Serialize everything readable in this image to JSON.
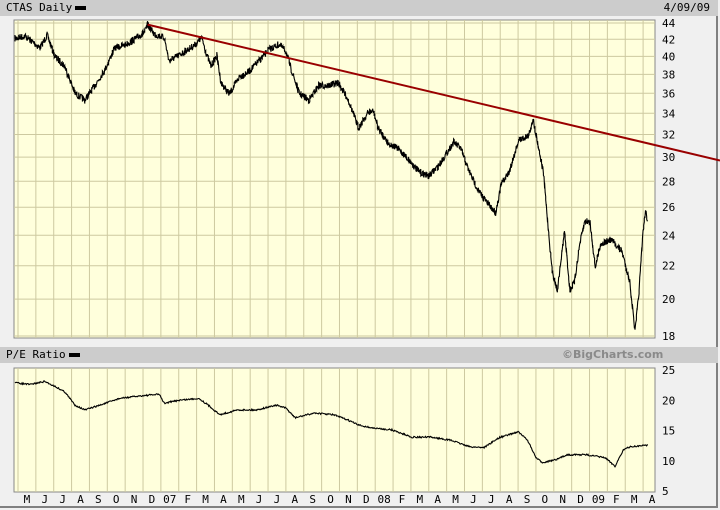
{
  "header": {
    "ticker_label": "CTAS Daily",
    "date": "4/09/09"
  },
  "lower_header": {
    "label": "P/E Ratio",
    "brand": "©BigCharts.com"
  },
  "colors": {
    "plot_bg": "#ffffdc",
    "grid": "#cdc9a0",
    "price_line": "#000000",
    "trendline": "#990000",
    "header_bg": "#cccccc"
  },
  "chart_data": [
    {
      "type": "line",
      "title": "CTAS Daily",
      "scale": "log",
      "ylim": [
        18,
        44
      ],
      "yticks": [
        44,
        42,
        40,
        38,
        36,
        34,
        32,
        30,
        28,
        26,
        24,
        22,
        20,
        18
      ],
      "xlim": [
        "2006-05-01",
        "2009-04-30"
      ],
      "grid": true,
      "points": [
        [
          "2006-04-26",
          42.1
        ],
        [
          "2006-05-13",
          42.4
        ],
        [
          "2006-06-08",
          41.0
        ],
        [
          "2006-06-20",
          42.5
        ],
        [
          "2006-07-03",
          40.0
        ],
        [
          "2006-07-20",
          38.9
        ],
        [
          "2006-08-07",
          36.0
        ],
        [
          "2006-08-24",
          35.3
        ],
        [
          "2006-09-10",
          36.8
        ],
        [
          "2006-09-27",
          38.5
        ],
        [
          "2006-10-14",
          41.0
        ],
        [
          "2006-10-31",
          41.3
        ],
        [
          "2006-11-17",
          42.0
        ],
        [
          "2006-12-04",
          42.9
        ],
        [
          "2006-12-09",
          43.8
        ],
        [
          "2006-12-21",
          42.6
        ],
        [
          "2007-01-07",
          42.2
        ],
        [
          "2007-01-15",
          39.5
        ],
        [
          "2007-02-01",
          40.1
        ],
        [
          "2007-02-26",
          41.3
        ],
        [
          "2007-03-10",
          42.2
        ],
        [
          "2007-03-19",
          40.1
        ],
        [
          "2007-03-26",
          38.9
        ],
        [
          "2007-04-05",
          40.1
        ],
        [
          "2007-04-12",
          37.1
        ],
        [
          "2007-04-26",
          35.9
        ],
        [
          "2007-05-13",
          37.7
        ],
        [
          "2007-05-30",
          38.3
        ],
        [
          "2007-06-16",
          39.5
        ],
        [
          "2007-07-03",
          40.8
        ],
        [
          "2007-07-20",
          41.4
        ],
        [
          "2007-08-01",
          40.6
        ],
        [
          "2007-08-09",
          38.8
        ],
        [
          "2007-08-24",
          36.0
        ],
        [
          "2007-09-10",
          35.3
        ],
        [
          "2007-09-26",
          36.8
        ],
        [
          "2007-10-13",
          36.8
        ],
        [
          "2007-10-30",
          37.1
        ],
        [
          "2007-11-16",
          35.3
        ],
        [
          "2007-12-03",
          32.6
        ],
        [
          "2007-12-20",
          34.1
        ],
        [
          "2007-12-29",
          34.2
        ],
        [
          "2008-01-06",
          32.6
        ],
        [
          "2008-01-24",
          31.2
        ],
        [
          "2008-02-10",
          30.7
        ],
        [
          "2008-02-26",
          29.8
        ],
        [
          "2008-03-14",
          28.8
        ],
        [
          "2008-04-01",
          28.4
        ],
        [
          "2008-04-18",
          29.3
        ],
        [
          "2008-05-13",
          31.3
        ],
        [
          "2008-05-25",
          30.8
        ],
        [
          "2008-06-08",
          28.9
        ],
        [
          "2008-06-25",
          27.2
        ],
        [
          "2008-07-12",
          26.2
        ],
        [
          "2008-07-24",
          25.6
        ],
        [
          "2008-08-03",
          27.8
        ],
        [
          "2008-08-16",
          28.7
        ],
        [
          "2008-09-02",
          31.5
        ],
        [
          "2008-09-19",
          31.9
        ],
        [
          "2008-09-26",
          33.5
        ],
        [
          "2008-10-05",
          31.0
        ],
        [
          "2008-10-14",
          28.7
        ],
        [
          "2008-10-20",
          25.6
        ],
        [
          "2008-10-29",
          21.7
        ],
        [
          "2008-11-07",
          20.5
        ],
        [
          "2008-11-19",
          24.3
        ],
        [
          "2008-11-28",
          20.5
        ],
        [
          "2008-12-06",
          21.0
        ],
        [
          "2008-12-15",
          23.4
        ],
        [
          "2008-12-24",
          25.0
        ],
        [
          "2009-01-02",
          24.9
        ],
        [
          "2009-01-11",
          21.9
        ],
        [
          "2009-01-20",
          23.4
        ],
        [
          "2009-02-07",
          23.7
        ],
        [
          "2009-02-24",
          22.9
        ],
        [
          "2009-03-09",
          21.0
        ],
        [
          "2009-03-18",
          18.2
        ],
        [
          "2009-03-25",
          20.5
        ],
        [
          "2009-04-01",
          24.3
        ],
        [
          "2009-04-05",
          25.7
        ],
        [
          "2009-04-09",
          25.0
        ]
      ],
      "trendline": [
        [
          "2006-12-09",
          43.8
        ],
        [
          "2009-04-09",
          31.2
        ]
      ]
    },
    {
      "type": "line",
      "title": "P/E Ratio",
      "ylim": [
        5,
        25
      ],
      "yticks": [
        25,
        20,
        15,
        10,
        5
      ],
      "xlim": [
        "2006-05-01",
        "2009-04-30"
      ],
      "xticks": [
        "M",
        "J",
        "J",
        "A",
        "S",
        "O",
        "N",
        "D",
        "07",
        "F",
        "M",
        "A",
        "M",
        "J",
        "J",
        "A",
        "S",
        "O",
        "N",
        "D",
        "08",
        "F",
        "M",
        "A",
        "M",
        "J",
        "J",
        "A",
        "S",
        "O",
        "N",
        "D",
        "09",
        "F",
        "M",
        "A"
      ],
      "points": [
        [
          "2006-04-26",
          22.9
        ],
        [
          "2006-05-21",
          22.6
        ],
        [
          "2006-06-16",
          23.1
        ],
        [
          "2006-07-03",
          22.3
        ],
        [
          "2006-07-20",
          21.4
        ],
        [
          "2006-08-07",
          19.2
        ],
        [
          "2006-08-24",
          18.4
        ],
        [
          "2006-09-19",
          19.2
        ],
        [
          "2006-10-22",
          20.3
        ],
        [
          "2006-11-25",
          20.7
        ],
        [
          "2006-12-29",
          21.0
        ],
        [
          "2007-01-07",
          19.5
        ],
        [
          "2007-02-01",
          20.0
        ],
        [
          "2007-03-05",
          20.3
        ],
        [
          "2007-03-21",
          19.2
        ],
        [
          "2007-04-10",
          17.6
        ],
        [
          "2007-05-10",
          18.4
        ],
        [
          "2007-06-12",
          18.4
        ],
        [
          "2007-07-15",
          19.2
        ],
        [
          "2007-08-01",
          18.7
        ],
        [
          "2007-08-17",
          17.1
        ],
        [
          "2007-09-19",
          17.9
        ],
        [
          "2007-10-22",
          17.6
        ],
        [
          "2007-11-16",
          16.7
        ],
        [
          "2007-12-03",
          15.9
        ],
        [
          "2007-12-28",
          15.4
        ],
        [
          "2008-01-30",
          15.1
        ],
        [
          "2008-03-03",
          13.9
        ],
        [
          "2008-04-05",
          13.9
        ],
        [
          "2008-05-08",
          13.4
        ],
        [
          "2008-06-10",
          12.3
        ],
        [
          "2008-07-04",
          12.2
        ],
        [
          "2008-07-30",
          13.8
        ],
        [
          "2008-09-01",
          14.8
        ],
        [
          "2008-09-17",
          13.4
        ],
        [
          "2008-10-01",
          10.5
        ],
        [
          "2008-10-12",
          9.7
        ],
        [
          "2008-11-06",
          10.2
        ],
        [
          "2008-11-23",
          11.0
        ],
        [
          "2008-12-26",
          11.0
        ],
        [
          "2009-01-28",
          10.5
        ],
        [
          "2009-02-13",
          9.1
        ],
        [
          "2009-02-26",
          11.8
        ],
        [
          "2009-03-10",
          12.3
        ],
        [
          "2009-04-09",
          12.6
        ]
      ]
    }
  ]
}
